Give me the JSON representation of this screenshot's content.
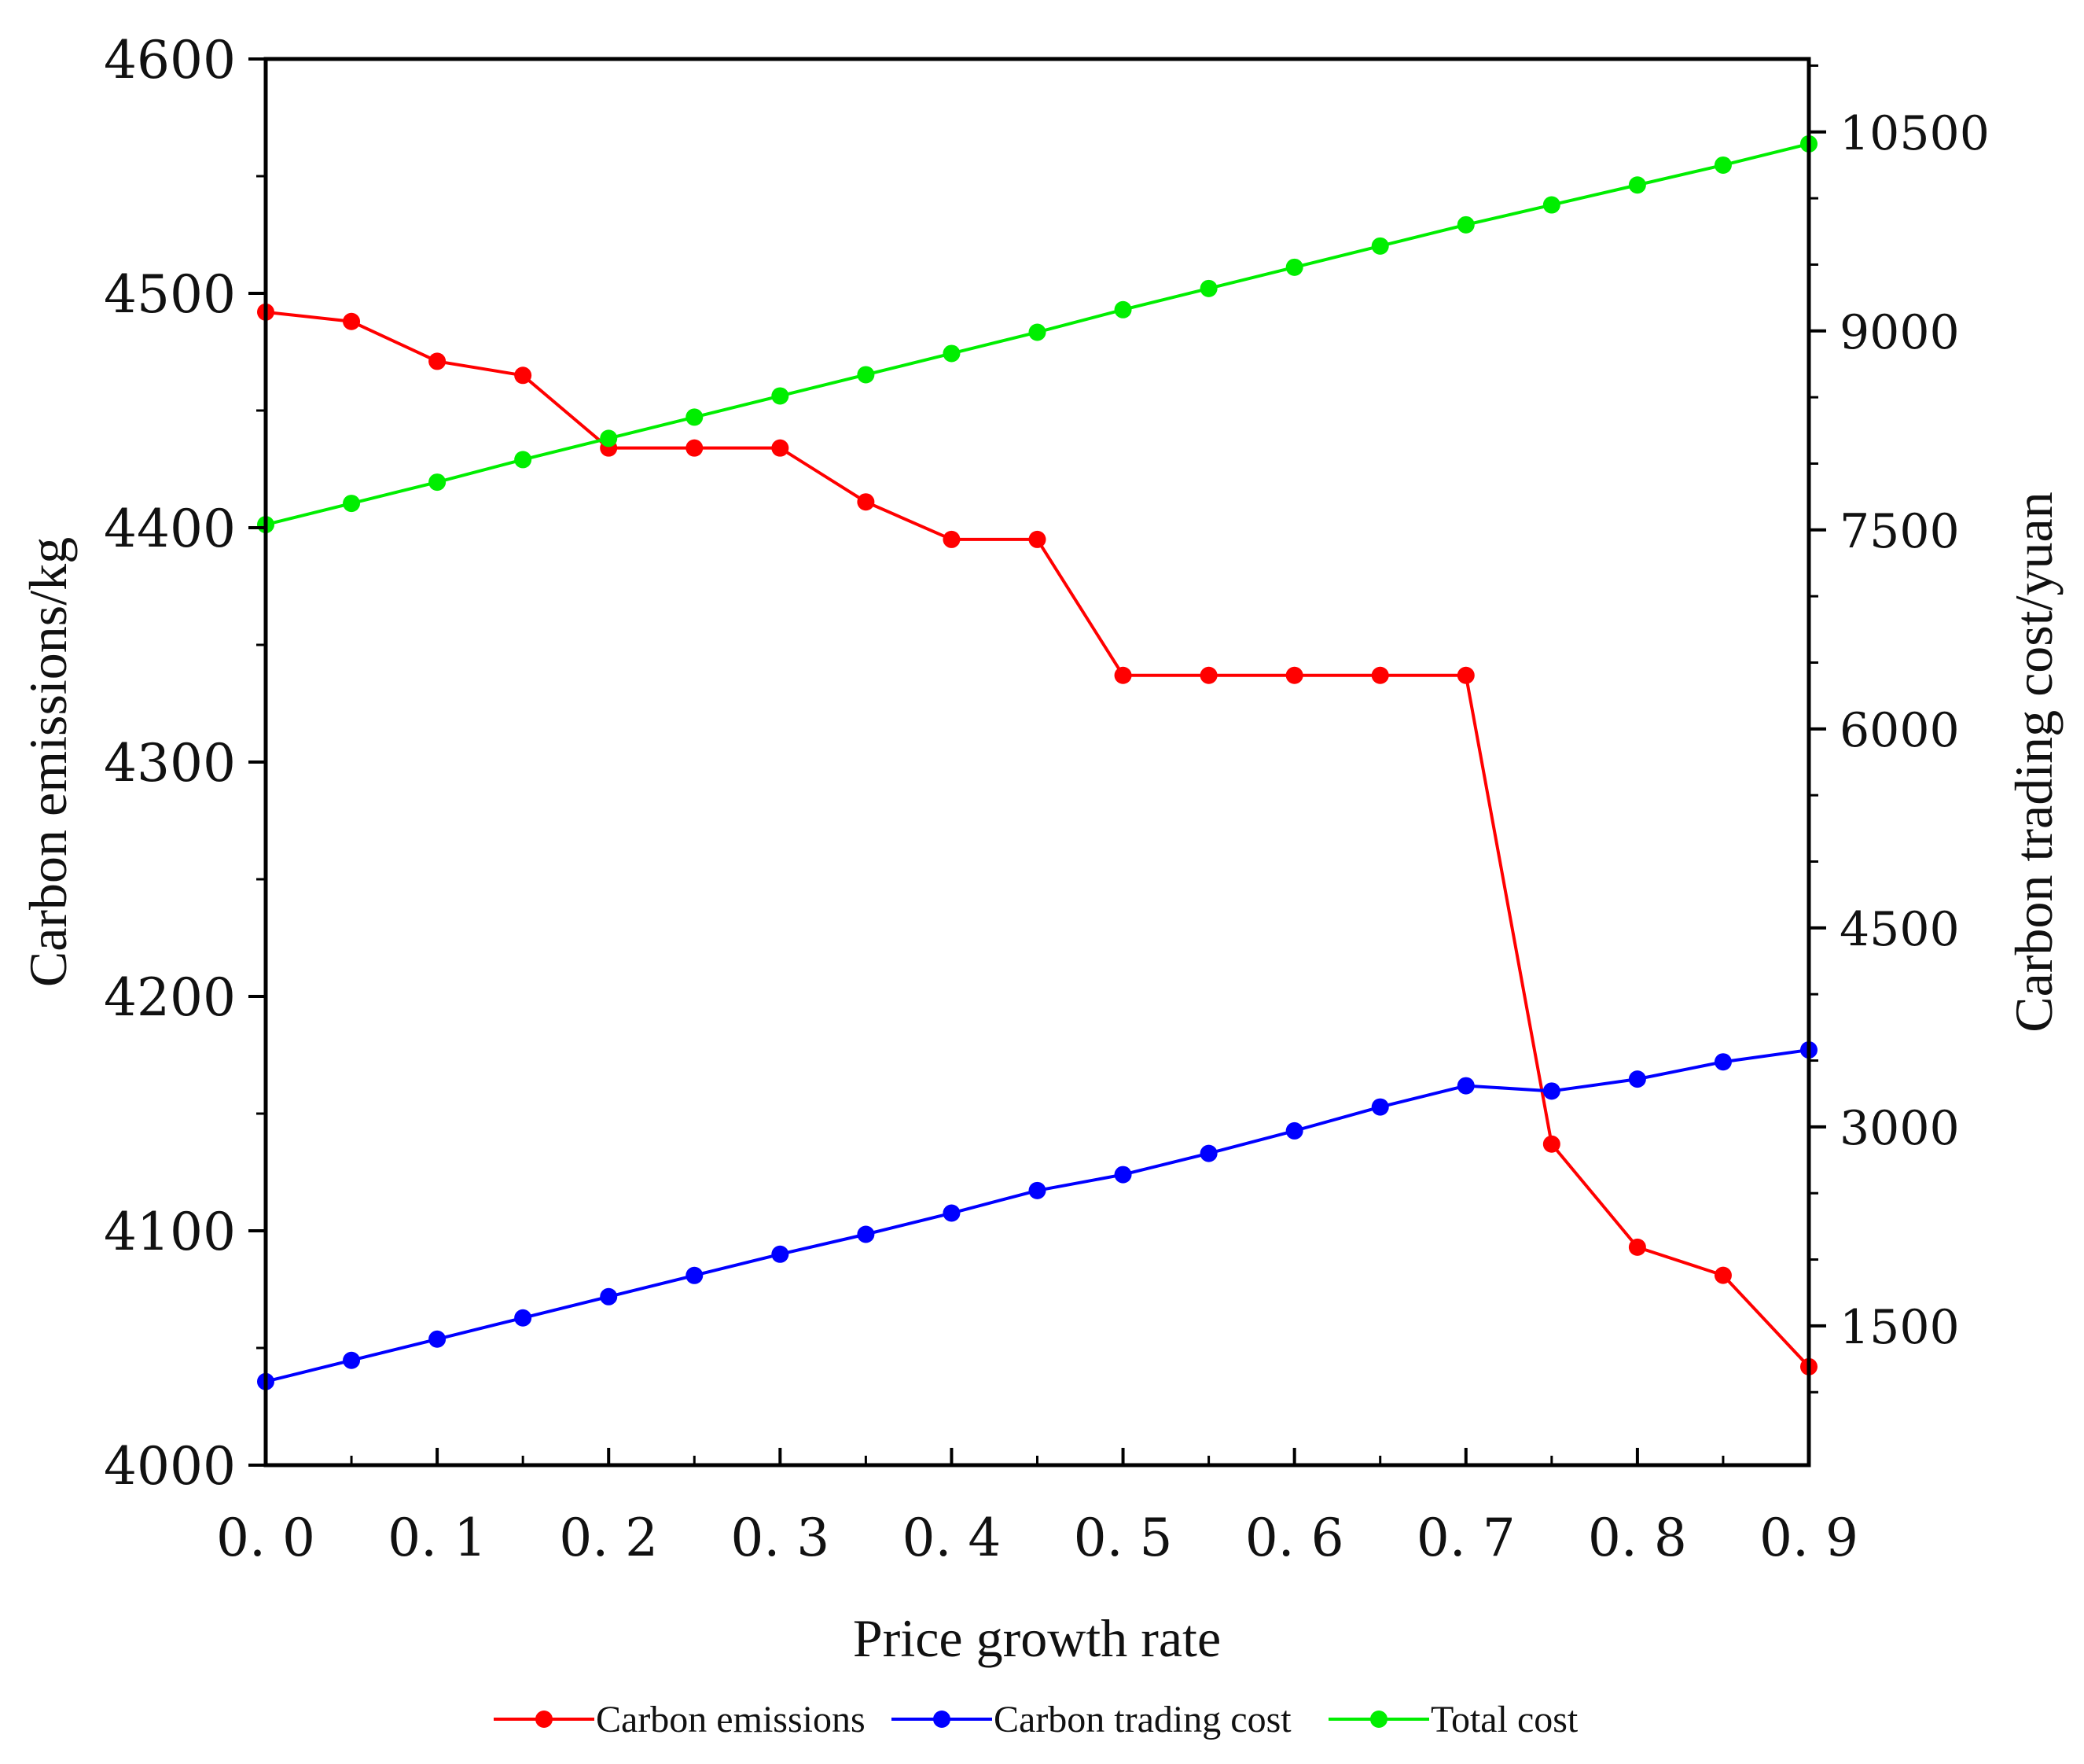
{
  "chart_data": {
    "type": "line",
    "title": "",
    "xlabel": "Price growth rate",
    "ylabel_left": "Carbon emissions/kg",
    "ylabel_right": "Carbon trading cost/yuan",
    "x": [
      0.0,
      0.05,
      0.1,
      0.15,
      0.2,
      0.25,
      0.3,
      0.35,
      0.4,
      0.45,
      0.5,
      0.55,
      0.6,
      0.65,
      0.7,
      0.75,
      0.8,
      0.85,
      0.9
    ],
    "xlim": [
      0,
      0.9
    ],
    "xticks": [
      0.0,
      0.1,
      0.2,
      0.3,
      0.4,
      0.5,
      0.6,
      0.7,
      0.8,
      0.9
    ],
    "xtick_labels": [
      "0. 0",
      "0. 1",
      "0. 2",
      "0. 3",
      "0. 4",
      "0. 5",
      "0. 6",
      "0. 7",
      "0. 8",
      "0. 9"
    ],
    "ylim_left": [
      4000,
      4600
    ],
    "yticks_left": [
      4000,
      4100,
      4200,
      4300,
      4400,
      4500,
      4600
    ],
    "ylim_right": [
      450,
      11050
    ],
    "yticks_right": [
      1500,
      3000,
      4500,
      6000,
      7500,
      9000,
      10500
    ],
    "series": [
      {
        "name": "Carbon emissions",
        "axis": "left",
        "color": "#ff0000",
        "values": [
          4492,
          4488,
          4471,
          4465,
          4434,
          4434,
          4434,
          4411,
          4395,
          4395,
          4337,
          4337,
          4337,
          4337,
          4337,
          4137,
          4093,
          4081,
          4042
        ]
      },
      {
        "name": "Carbon trading cost",
        "axis": "right",
        "color": "#0000ff",
        "values": [
          1080,
          1240,
          1400,
          1560,
          1720,
          1880,
          2040,
          2190,
          2350,
          2520,
          2640,
          2800,
          2970,
          3150,
          3310,
          3270,
          3360,
          3490,
          3580
        ]
      },
      {
        "name": "Total cost",
        "axis": "right",
        "color": "#00ee00",
        "values": [
          7540,
          7700,
          7860,
          8030,
          8190,
          8350,
          8510,
          8670,
          8830,
          8990,
          9160,
          9320,
          9480,
          9640,
          9800,
          9950,
          10100,
          10250,
          10410
        ]
      }
    ],
    "legend": [
      "Carbon emissions",
      "Carbon trading cost",
      "Total cost"
    ],
    "legend_position": "bottom"
  }
}
